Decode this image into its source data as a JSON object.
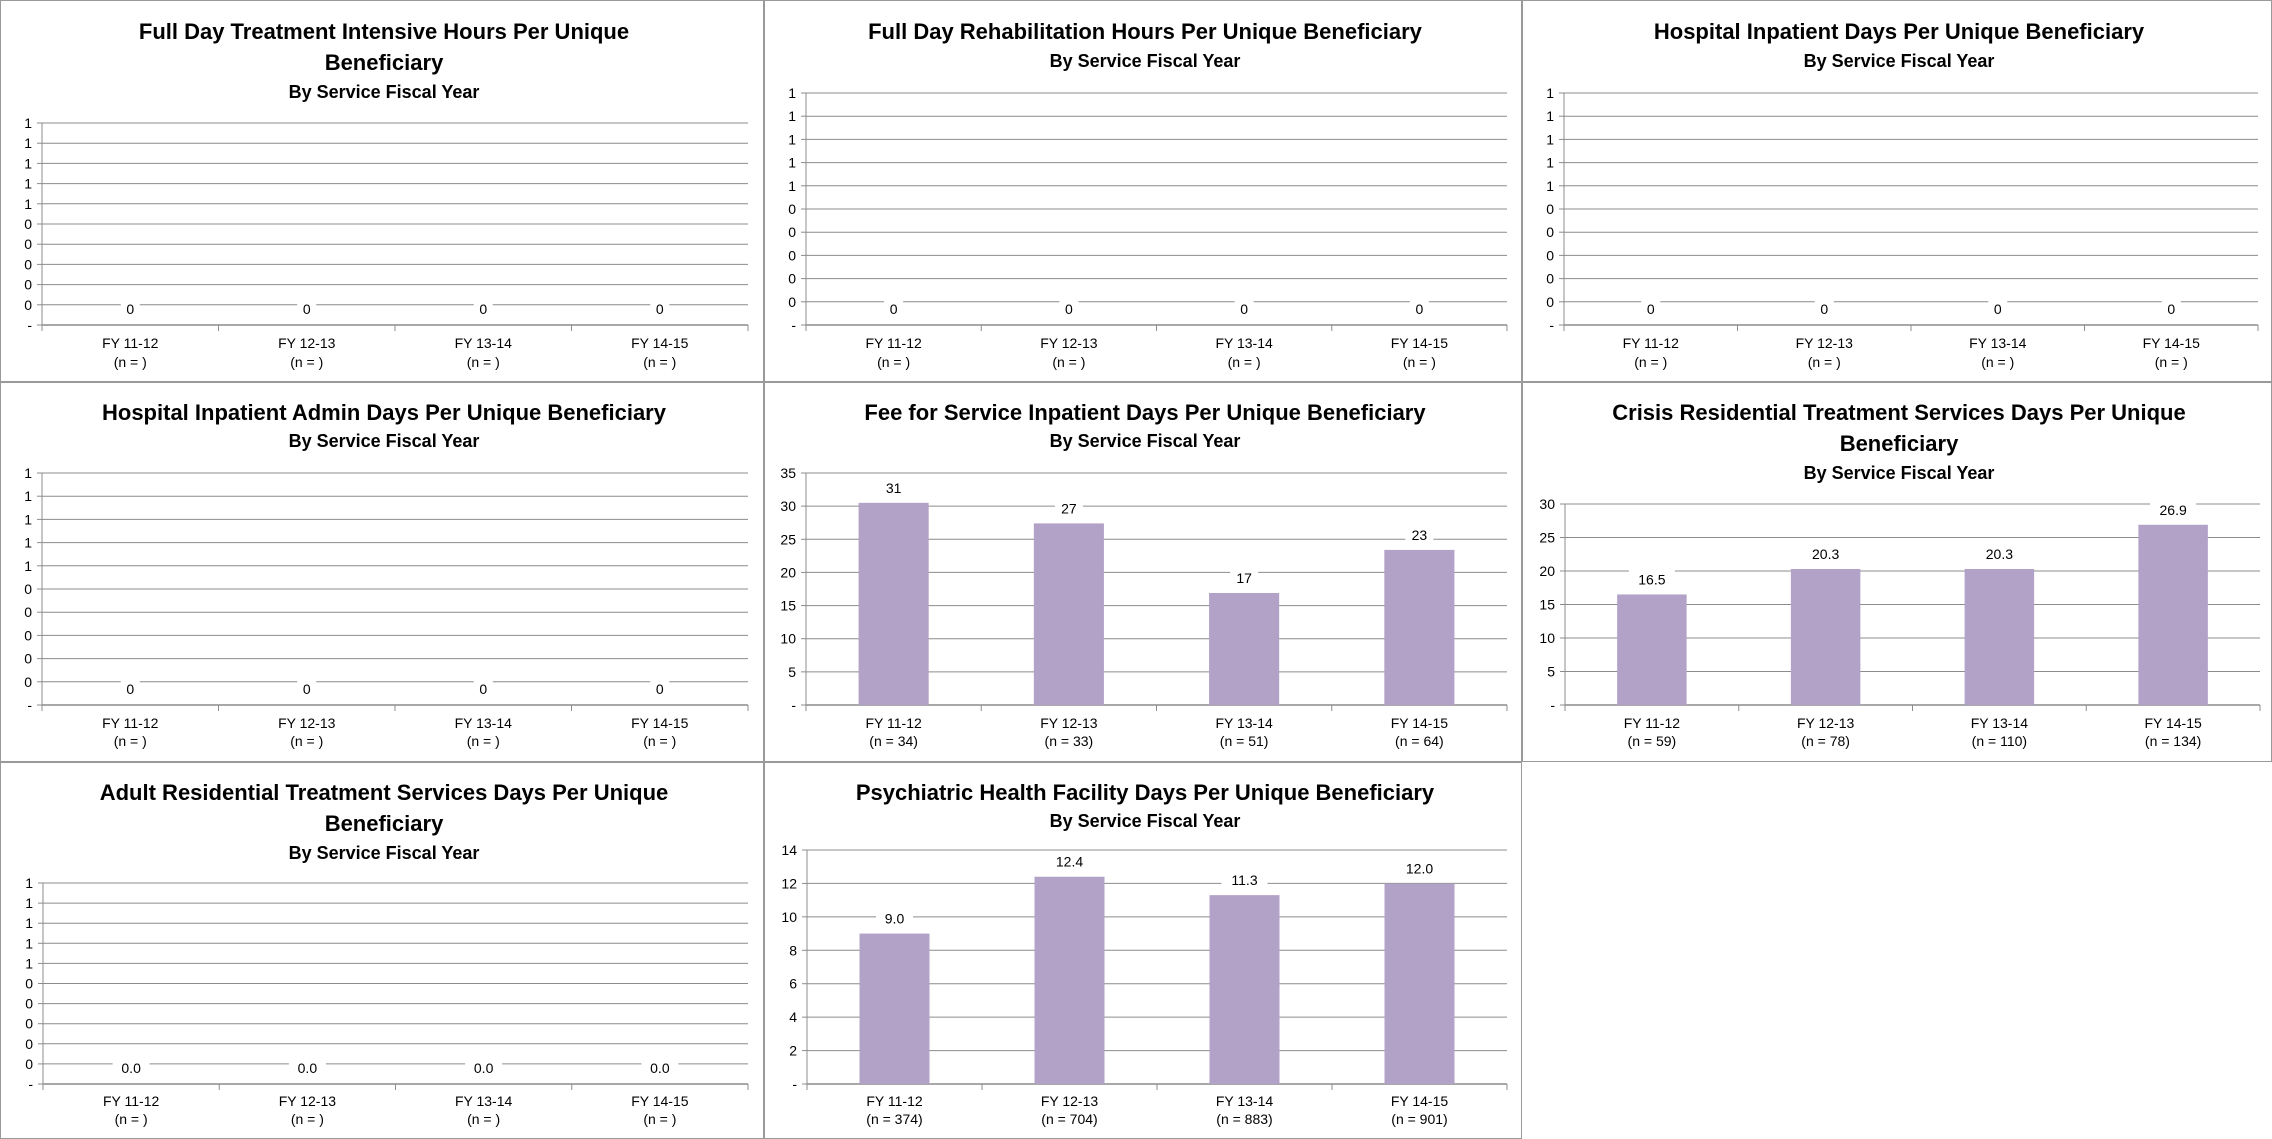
{
  "chart_data": [
    {
      "type": "bar",
      "title_lines": [
        "Full Day Treatment Intensive Hours Per Unique",
        "Beneficiary"
      ],
      "subtitle": "By Service Fiscal Year",
      "categories": [
        "FY 11-12",
        "FY 12-13",
        "FY 13-14",
        "FY 14-15"
      ],
      "n_labels": [
        "(n = )",
        "(n = )",
        "(n = )",
        "(n = )"
      ],
      "values": [
        0,
        0,
        0,
        0
      ],
      "data_labels": [
        "0",
        "0",
        "0",
        "0"
      ],
      "y_tick_labels": [
        "-",
        "0",
        "0",
        "0",
        "0",
        "0",
        "1",
        "1",
        "1",
        "1",
        "1"
      ],
      "ylim": [
        0,
        1
      ],
      "grid": true,
      "bar_color": "#b3a2c7"
    },
    {
      "type": "bar",
      "title_lines": [
        "Full Day Rehabilitation Hours Per Unique Beneficiary"
      ],
      "subtitle": "By Service Fiscal Year",
      "categories": [
        "FY 11-12",
        "FY 12-13",
        "FY 13-14",
        "FY 14-15"
      ],
      "n_labels": [
        "(n = )",
        "(n = )",
        "(n = )",
        "(n = )"
      ],
      "values": [
        0,
        0,
        0,
        0
      ],
      "data_labels": [
        "0",
        "0",
        "0",
        "0"
      ],
      "y_tick_labels": [
        "-",
        "0",
        "0",
        "0",
        "0",
        "0",
        "1",
        "1",
        "1",
        "1",
        "1"
      ],
      "ylim": [
        0,
        1
      ],
      "grid": true,
      "bar_color": "#b3a2c7"
    },
    {
      "type": "bar",
      "title_lines": [
        "Hospital Inpatient Days Per Unique Beneficiary"
      ],
      "subtitle": "By Service Fiscal Year",
      "categories": [
        "FY 11-12",
        "FY 12-13",
        "FY 13-14",
        "FY 14-15"
      ],
      "n_labels": [
        "(n = )",
        "(n = )",
        "(n = )",
        "(n = )"
      ],
      "values": [
        0,
        0,
        0,
        0
      ],
      "data_labels": [
        "0",
        "0",
        "0",
        "0"
      ],
      "y_tick_labels": [
        "-",
        "0",
        "0",
        "0",
        "0",
        "0",
        "1",
        "1",
        "1",
        "1",
        "1"
      ],
      "ylim": [
        0,
        1
      ],
      "grid": true,
      "bar_color": "#b3a2c7"
    },
    {
      "type": "bar",
      "title_lines": [
        "Hospital Inpatient Admin Days Per Unique Beneficiary"
      ],
      "subtitle": "By Service Fiscal Year",
      "categories": [
        "FY 11-12",
        "FY 12-13",
        "FY 13-14",
        "FY 14-15"
      ],
      "n_labels": [
        "(n = )",
        "(n = )",
        "(n = )",
        "(n = )"
      ],
      "values": [
        0,
        0,
        0,
        0
      ],
      "data_labels": [
        "0",
        "0",
        "0",
        "0"
      ],
      "y_tick_labels": [
        "-",
        "0",
        "0",
        "0",
        "0",
        "0",
        "1",
        "1",
        "1",
        "1",
        "1"
      ],
      "ylim": [
        0,
        1
      ],
      "grid": true,
      "bar_color": "#b3a2c7"
    },
    {
      "type": "bar",
      "title_lines": [
        "Fee for Service Inpatient Days Per Unique Beneficiary"
      ],
      "subtitle": "By Service Fiscal Year",
      "categories": [
        "FY 11-12",
        "FY 12-13",
        "FY 13-14",
        "FY 14-15"
      ],
      "n_labels": [
        "(n = 34)",
        "(n = 33)",
        "(n = 51)",
        "(n = 64)"
      ],
      "values": [
        30.5,
        27.4,
        16.9,
        23.4
      ],
      "data_labels": [
        "31",
        "27",
        "17",
        "23"
      ],
      "y_tick_labels": [
        "-",
        "5",
        "10",
        "15",
        "20",
        "25",
        "30",
        "35"
      ],
      "ylim": [
        0,
        35
      ],
      "grid": true,
      "bar_color": "#b3a2c7"
    },
    {
      "type": "bar",
      "title_lines": [
        "Crisis Residential Treatment Services Days Per Unique",
        "Beneficiary"
      ],
      "subtitle": "By Service Fiscal Year",
      "categories": [
        "FY 11-12",
        "FY 12-13",
        "FY 13-14",
        "FY 14-15"
      ],
      "n_labels": [
        "(n = 59)",
        "(n = 78)",
        "(n = 110)",
        "(n = 134)"
      ],
      "values": [
        16.5,
        20.3,
        20.3,
        26.9
      ],
      "data_labels": [
        "16.5",
        "20.3",
        "20.3",
        "26.9"
      ],
      "y_tick_labels": [
        "-",
        "5",
        "10",
        "15",
        "20",
        "25",
        "30"
      ],
      "ylim": [
        0,
        30
      ],
      "grid": true,
      "bar_color": "#b3a2c7"
    },
    {
      "type": "bar",
      "title_lines": [
        "Adult Residential Treatment Services Days Per Unique",
        "Beneficiary"
      ],
      "subtitle": "By Service Fiscal Year",
      "categories": [
        "FY 11-12",
        "FY 12-13",
        "FY 13-14",
        "FY 14-15"
      ],
      "n_labels": [
        "(n = )",
        "(n = )",
        "(n = )",
        "(n = )"
      ],
      "values": [
        0,
        0,
        0,
        0
      ],
      "data_labels": [
        "0.0",
        "0.0",
        "0.0",
        "0.0"
      ],
      "y_tick_labels": [
        "-",
        "0",
        "0",
        "0",
        "0",
        "0",
        "1",
        "1",
        "1",
        "1",
        "1"
      ],
      "ylim": [
        0,
        1
      ],
      "grid": true,
      "bar_color": "#b3a2c7"
    },
    {
      "type": "bar",
      "title_lines": [
        "Psychiatric Health Facility Days Per Unique Beneficiary"
      ],
      "subtitle": "By Service Fiscal Year",
      "categories": [
        "FY 11-12",
        "FY 12-13",
        "FY 13-14",
        "FY 14-15"
      ],
      "n_labels": [
        "(n = 374)",
        "(n = 704)",
        "(n = 883)",
        "(n = 901)"
      ],
      "values": [
        9.0,
        12.4,
        11.3,
        12.0
      ],
      "data_labels": [
        "9.0",
        "12.4",
        "11.3",
        "12.0"
      ],
      "y_tick_labels": [
        "-",
        "2",
        "4",
        "6",
        "8",
        "10",
        "12",
        "14"
      ],
      "ylim": [
        0,
        14
      ],
      "grid": true,
      "bar_color": "#b3a2c7"
    }
  ]
}
